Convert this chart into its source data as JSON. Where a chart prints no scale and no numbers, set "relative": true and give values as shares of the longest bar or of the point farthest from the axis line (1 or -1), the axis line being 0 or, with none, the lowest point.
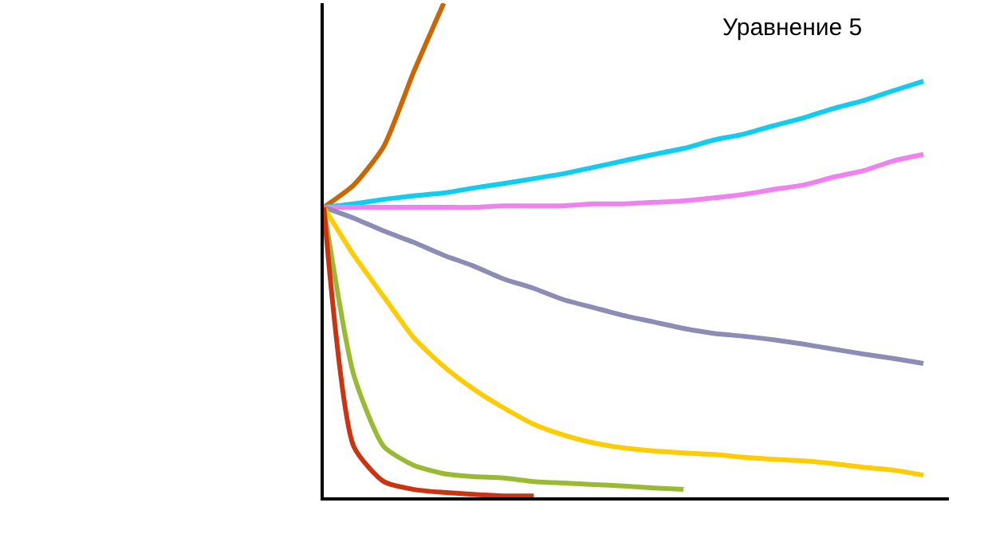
{
  "chart_data": {
    "type": "line",
    "title": "Уравнение 5",
    "relative": true,
    "marker": "none",
    "line_style": "solid",
    "categories": [
      null,
      null,
      null,
      null,
      null,
      null,
      null,
      null,
      null,
      null,
      null,
      null,
      null,
      null,
      null,
      null,
      null,
      null,
      null,
      null,
      null
    ],
    "series": [
      {
        "color": "#cc6600",
        "values": [
          0.587,
          0.632,
          0.71,
          0.861,
          1.0,
          null,
          null,
          null,
          null,
          null,
          null,
          null,
          null,
          null,
          null,
          null,
          null,
          null,
          null,
          null,
          null
        ]
      },
      {
        "color": "#11ccee",
        "values": [
          0.587,
          0.594,
          0.603,
          0.61,
          0.616,
          0.626,
          0.635,
          0.645,
          0.655,
          0.668,
          0.681,
          0.694,
          0.706,
          0.723,
          0.735,
          0.752,
          0.768,
          0.787,
          0.803,
          0.823,
          0.842
        ]
      },
      {
        "color": "#ee82ee",
        "values": [
          0.587,
          0.587,
          0.587,
          0.587,
          0.587,
          0.587,
          0.59,
          0.59,
          0.59,
          0.594,
          0.594,
          0.597,
          0.6,
          0.606,
          0.613,
          0.623,
          0.632,
          0.648,
          0.661,
          0.681,
          0.694
        ]
      },
      {
        "color": "#8c8cb4",
        "values": [
          0.587,
          0.565,
          0.539,
          0.516,
          0.49,
          0.468,
          0.442,
          0.423,
          0.4,
          0.384,
          0.368,
          0.355,
          0.342,
          0.332,
          0.326,
          0.319,
          0.31,
          0.3,
          0.29,
          0.281,
          0.271
        ]
      },
      {
        "color": "#ffcc00",
        "values": [
          0.587,
          0.49,
          0.406,
          0.323,
          0.265,
          0.219,
          0.181,
          0.148,
          0.126,
          0.11,
          0.1,
          0.094,
          0.09,
          0.087,
          0.081,
          0.077,
          0.074,
          0.068,
          0.061,
          0.055,
          0.045
        ]
      },
      {
        "color": "#99bb33",
        "values": [
          0.587,
          0.248,
          0.103,
          0.065,
          0.048,
          0.042,
          0.039,
          0.032,
          0.029,
          0.026,
          0.023,
          0.019,
          0.016,
          null,
          null,
          null,
          null,
          null,
          null,
          null,
          null
        ]
      },
      {
        "color": "#cc3311",
        "values": [
          0.587,
          0.103,
          0.032,
          0.016,
          0.01,
          0.006,
          0.003,
          0.003,
          null,
          null,
          null,
          null,
          null,
          null,
          null,
          null,
          null,
          null,
          null,
          null,
          null
        ]
      }
    ]
  }
}
